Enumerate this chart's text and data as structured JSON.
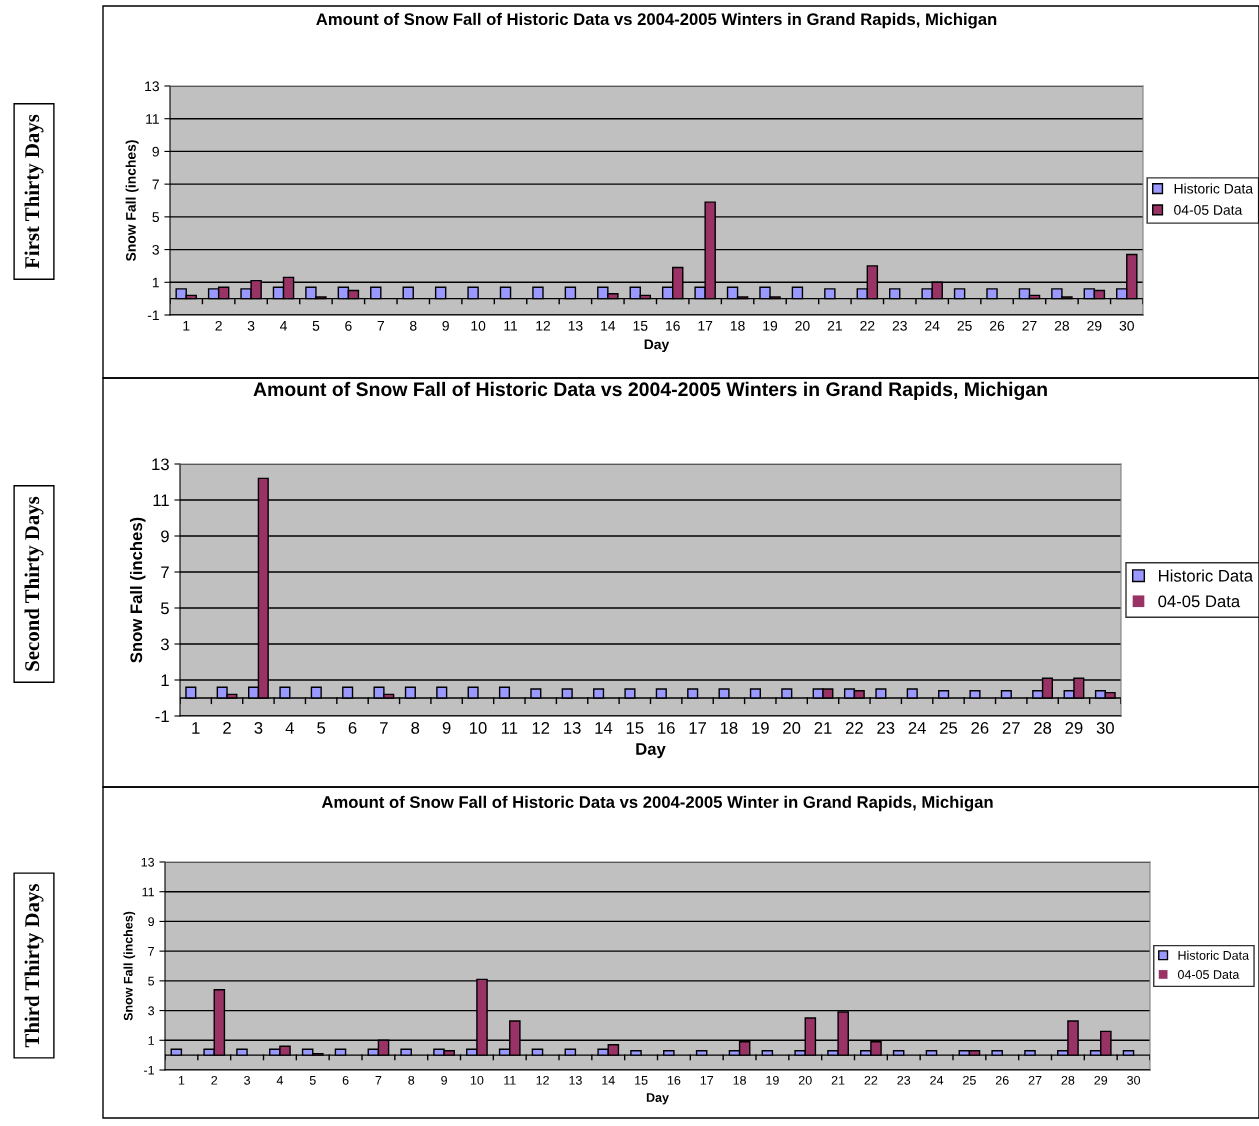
{
  "chart_data": [
    {
      "type": "bar",
      "title": "Amount of Snow Fall of Historic Data vs 2004-2005 Winters in Grand Rapids, Michigan",
      "xlabel": "Day",
      "ylabel": "Snow Fall (inches)",
      "categories": [
        "1",
        "2",
        "3",
        "4",
        "5",
        "6",
        "7",
        "8",
        "9",
        "10",
        "11",
        "12",
        "13",
        "14",
        "15",
        "16",
        "17",
        "18",
        "19",
        "20",
        "21",
        "22",
        "23",
        "24",
        "25",
        "26",
        "27",
        "28",
        "29",
        "30"
      ],
      "series": [
        {
          "name": "Historic Data",
          "color": "#9999ff",
          "values": [
            0.6,
            0.6,
            0.6,
            0.7,
            0.7,
            0.7,
            0.7,
            0.7,
            0.7,
            0.7,
            0.7,
            0.7,
            0.7,
            0.7,
            0.7,
            0.7,
            0.7,
            0.7,
            0.7,
            0.7,
            0.6,
            0.6,
            0.6,
            0.6,
            0.6,
            0.6,
            0.6,
            0.6,
            0.6,
            0.6
          ]
        },
        {
          "name": "04-05 Data",
          "color": "#993366",
          "values": [
            0.2,
            0.7,
            1.1,
            1.3,
            0.1,
            0.5,
            0,
            0,
            0,
            0,
            0,
            0,
            0,
            0.3,
            0.2,
            1.9,
            5.9,
            0.1,
            0.1,
            0,
            0,
            2.0,
            0,
            1.0,
            0,
            0,
            0.2,
            0.1,
            0.5,
            2.7
          ]
        }
      ],
      "ylim": [
        -1,
        13
      ],
      "yticks": [
        -1,
        1,
        3,
        5,
        7,
        9,
        11,
        13
      ],
      "grid": "y",
      "legend": "right",
      "annotations": [
        "First Thirty Days"
      ]
    },
    {
      "type": "bar",
      "title": "Amount of Snow Fall of Historic Data vs 2004-2005 Winters in Grand Rapids, Michigan",
      "xlabel": "Day",
      "ylabel": "Snow Fall (inches)",
      "categories": [
        "1",
        "2",
        "3",
        "4",
        "5",
        "6",
        "7",
        "8",
        "9",
        "10",
        "11",
        "12",
        "13",
        "14",
        "15",
        "16",
        "17",
        "18",
        "19",
        "20",
        "21",
        "22",
        "23",
        "24",
        "25",
        "26",
        "27",
        "28",
        "29",
        "30"
      ],
      "series": [
        {
          "name": "Historic Data",
          "color": "#9999ff",
          "values": [
            0.6,
            0.6,
            0.6,
            0.6,
            0.6,
            0.6,
            0.6,
            0.6,
            0.6,
            0.6,
            0.6,
            0.5,
            0.5,
            0.5,
            0.5,
            0.5,
            0.5,
            0.5,
            0.5,
            0.5,
            0.5,
            0.5,
            0.5,
            0.5,
            0.4,
            0.4,
            0.4,
            0.4,
            0.4,
            0.4
          ]
        },
        {
          "name": "04-05 Data",
          "color": "#993366",
          "values": [
            0,
            0.2,
            12.2,
            0,
            0,
            0,
            0.2,
            0,
            0,
            0,
            0,
            0,
            0,
            0,
            0,
            0,
            0,
            0,
            0,
            0,
            0.5,
            0.4,
            0,
            0,
            0,
            0,
            0,
            1.1,
            1.1,
            0.3
          ]
        }
      ],
      "ylim": [
        -1,
        13
      ],
      "yticks": [
        -1,
        1,
        3,
        5,
        7,
        9,
        11,
        13
      ],
      "grid": "y",
      "legend": "right",
      "annotations": [
        "Second Thirty Days"
      ]
    },
    {
      "type": "bar",
      "title": "Amount of Snow Fall of Historic Data vs 2004-2005 Winter in Grand Rapids, Michigan",
      "xlabel": "Day",
      "ylabel": "Snow Fall (inches)",
      "categories": [
        "1",
        "2",
        "3",
        "4",
        "5",
        "6",
        "7",
        "8",
        "9",
        "10",
        "11",
        "12",
        "13",
        "14",
        "15",
        "16",
        "17",
        "18",
        "19",
        "20",
        "21",
        "22",
        "23",
        "24",
        "25",
        "26",
        "27",
        "28",
        "29",
        "30"
      ],
      "series": [
        {
          "name": "Historic Data",
          "color": "#9999ff",
          "values": [
            0.4,
            0.4,
            0.4,
            0.4,
            0.4,
            0.4,
            0.4,
            0.4,
            0.4,
            0.4,
            0.4,
            0.4,
            0.4,
            0.4,
            0.3,
            0.3,
            0.3,
            0.3,
            0.3,
            0.3,
            0.3,
            0.3,
            0.3,
            0.3,
            0.3,
            0.3,
            0.3,
            0.3,
            0.3,
            0.3
          ]
        },
        {
          "name": "04-05 Data",
          "color": "#993366",
          "values": [
            0,
            4.4,
            0,
            0.6,
            0.1,
            0,
            1.0,
            0,
            0.3,
            5.1,
            2.3,
            0,
            0,
            0.7,
            0,
            0,
            0,
            0.9,
            0,
            2.5,
            2.9,
            0.9,
            0,
            0,
            0.3,
            0,
            0,
            2.3,
            1.6,
            0
          ]
        }
      ],
      "ylim": [
        -1,
        13
      ],
      "yticks": [
        -1,
        1,
        3,
        5,
        7,
        9,
        11,
        13
      ],
      "grid": "y",
      "legend": "right",
      "annotations": [
        "Third Thirty Days"
      ]
    }
  ]
}
